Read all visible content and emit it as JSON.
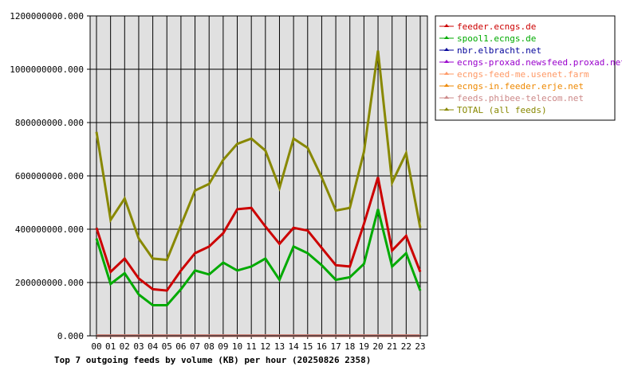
{
  "chart_data": {
    "type": "line",
    "title": "Top 7 outgoing feeds by volume (KB) per hour (20250826 2358)",
    "xlabel": "",
    "ylabel": "",
    "categories": [
      "00",
      "01",
      "02",
      "03",
      "04",
      "05",
      "06",
      "07",
      "08",
      "09",
      "10",
      "11",
      "12",
      "13",
      "14",
      "15",
      "16",
      "17",
      "18",
      "19",
      "20",
      "21",
      "22",
      "23"
    ],
    "ylim": [
      0,
      1200000000
    ],
    "y_ticks": [
      "0.000",
      "200000000.000",
      "400000000.000",
      "600000000.000",
      "800000000.000",
      "1000000000.000",
      "1200000000.000"
    ],
    "grid": true,
    "legend_position": "right",
    "series": [
      {
        "name": "feeder.ecngs.de",
        "color": "#cc0000",
        "values": [
          405000000,
          240000000,
          290000000,
          215000000,
          175000000,
          170000000,
          245000000,
          310000000,
          335000000,
          385000000,
          475000000,
          480000000,
          410000000,
          345000000,
          405000000,
          395000000,
          330000000,
          265000000,
          260000000,
          420000000,
          595000000,
          320000000,
          375000000,
          240000000
        ]
      },
      {
        "name": "spool1.ecngs.de",
        "color": "#00aa00",
        "values": [
          365000000,
          195000000,
          235000000,
          155000000,
          115000000,
          115000000,
          175000000,
          245000000,
          230000000,
          275000000,
          245000000,
          260000000,
          290000000,
          210000000,
          335000000,
          310000000,
          265000000,
          210000000,
          220000000,
          270000000,
          475000000,
          260000000,
          310000000,
          170000000
        ]
      },
      {
        "name": "nbr.elbracht.net",
        "color": "#000099",
        "values": [
          500000,
          500000,
          500000,
          500000,
          500000,
          500000,
          500000,
          500000,
          500000,
          500000,
          500000,
          500000,
          500000,
          500000,
          500000,
          500000,
          500000,
          500000,
          500000,
          500000,
          500000,
          500000,
          500000,
          500000
        ]
      },
      {
        "name": "ecngs-proxad.newsfeed.proxad.net",
        "color": "#9900cc",
        "values": [
          500000,
          500000,
          500000,
          500000,
          500000,
          500000,
          500000,
          500000,
          500000,
          500000,
          500000,
          500000,
          500000,
          500000,
          500000,
          500000,
          500000,
          500000,
          500000,
          500000,
          500000,
          500000,
          500000,
          500000
        ]
      },
      {
        "name": "ecngs-feed-me.usenet.farm",
        "color": "#ff9966",
        "values": [
          800000,
          800000,
          800000,
          800000,
          800000,
          800000,
          800000,
          800000,
          800000,
          800000,
          800000,
          800000,
          800000,
          800000,
          800000,
          800000,
          800000,
          800000,
          800000,
          800000,
          800000,
          800000,
          800000,
          800000
        ]
      },
      {
        "name": "ecngs-in.feeder.erje.net",
        "color": "#ee8800",
        "values": [
          600000,
          600000,
          600000,
          600000,
          600000,
          600000,
          600000,
          600000,
          600000,
          600000,
          600000,
          600000,
          600000,
          600000,
          600000,
          600000,
          600000,
          600000,
          600000,
          600000,
          600000,
          600000,
          600000,
          600000
        ]
      },
      {
        "name": "feeds.phibee-telecom.net",
        "color": "#cc8888",
        "values": [
          1000000,
          1000000,
          1000000,
          1000000,
          1000000,
          1000000,
          1000000,
          1000000,
          1000000,
          1000000,
          1000000,
          1000000,
          1000000,
          1000000,
          1000000,
          1000000,
          1000000,
          1000000,
          1000000,
          1000000,
          1000000,
          1000000,
          1000000,
          1000000
        ]
      },
      {
        "name": "TOTAL (all feeds)",
        "color": "#888800",
        "values": [
          765000000,
          435000000,
          515000000,
          365000000,
          290000000,
          285000000,
          415000000,
          545000000,
          570000000,
          660000000,
          720000000,
          740000000,
          695000000,
          555000000,
          740000000,
          705000000,
          595000000,
          470000000,
          480000000,
          690000000,
          1070000000,
          575000000,
          685000000,
          405000000
        ]
      }
    ]
  }
}
